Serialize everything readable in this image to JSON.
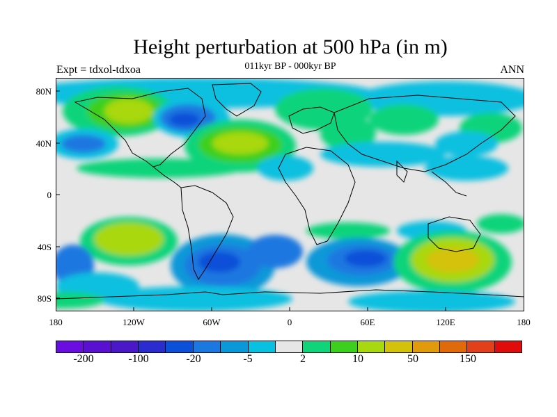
{
  "title": "Height perturbation at 500 hPa (in m)",
  "subtitle_left": "Expt = tdxol-tdxoa",
  "subtitle_center": "011kyr BP - 000kyr BP",
  "subtitle_right": "ANN",
  "lat_labels": [
    "80N",
    "40N",
    "0",
    "40S",
    "80S"
  ],
  "lon_labels": [
    "180",
    "120W",
    "60W",
    "0",
    "60E",
    "120E",
    "180"
  ],
  "colorbar": {
    "colors": [
      "#6a0de0",
      "#5a10d0",
      "#4a18c8",
      "#2a2cd0",
      "#0a50d8",
      "#1a78e0",
      "#0a98d8",
      "#08c0e0",
      "#e6e6e6",
      "#10d47a",
      "#3ccf1e",
      "#a8d810",
      "#d4c20a",
      "#e09a0a",
      "#e06a0a",
      "#e2401a",
      "#e00c0c"
    ],
    "labels": [
      "-200",
      "-100",
      "-20",
      "-5",
      "2",
      "10",
      "50",
      "150"
    ]
  },
  "map_colors": {
    "neutral": "#e6e6e6",
    "green": "#10d47a",
    "brightgreen": "#3ccf1e",
    "lime": "#a8d810",
    "yellow": "#d4c20a",
    "orange": "#e09a0a",
    "cyan": "#08c0e0",
    "lightblue": "#0a98d8",
    "blue": "#1a78e0",
    "deepblue": "#0a50d8",
    "navy": "#2a2cd0"
  }
}
